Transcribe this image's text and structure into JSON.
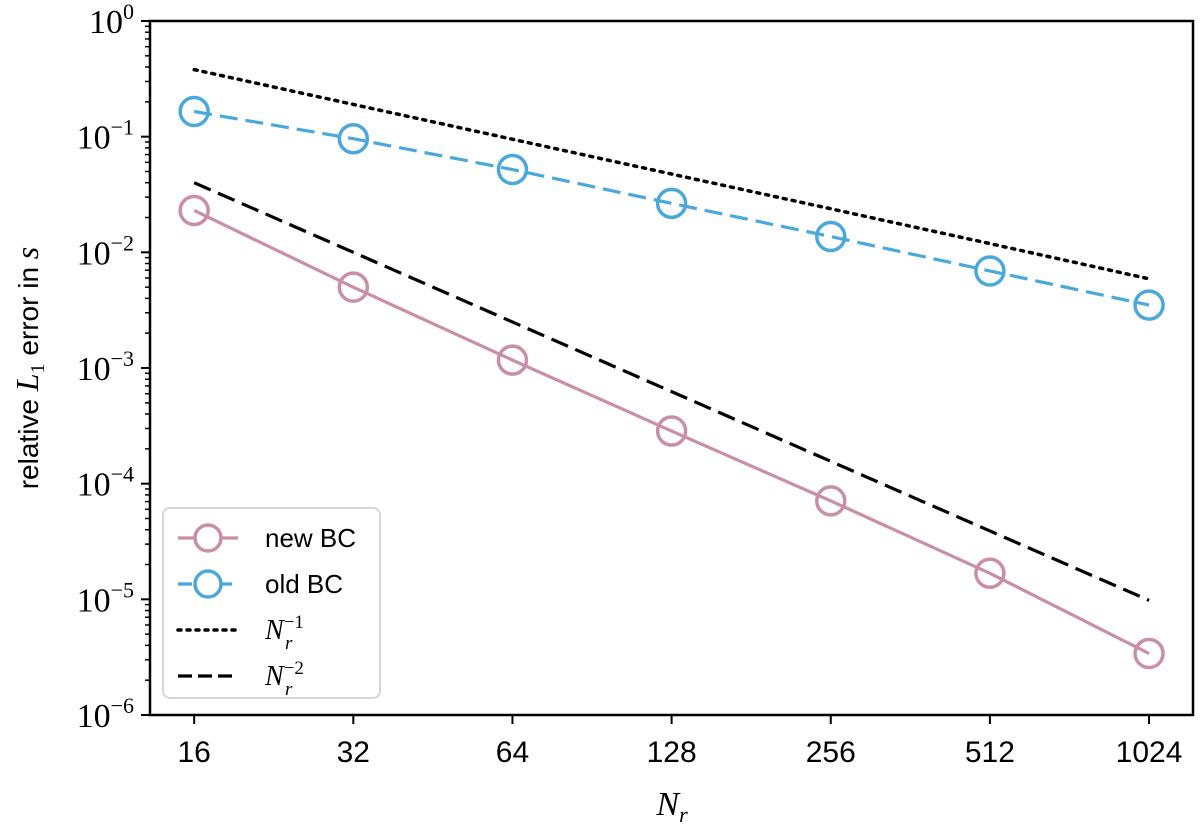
{
  "chart_data": {
    "type": "line",
    "x_scale": "log2",
    "y_scale": "log10",
    "x": [
      16,
      32,
      64,
      128,
      256,
      512,
      1024
    ],
    "x_tick_labels": [
      "16",
      "32",
      "64",
      "128",
      "256",
      "512",
      "1024"
    ],
    "xlim": [
      13.2,
      1240
    ],
    "ylim": [
      1e-06,
      1
    ],
    "y_ticks": [
      {
        "base": "10",
        "exp": "0"
      },
      {
        "base": "10",
        "exp": "−1"
      },
      {
        "base": "10",
        "exp": "−2"
      },
      {
        "base": "10",
        "exp": "−3"
      },
      {
        "base": "10",
        "exp": "−4"
      },
      {
        "base": "10",
        "exp": "−5"
      },
      {
        "base": "10",
        "exp": "−6"
      }
    ],
    "xlabel": {
      "main": "N",
      "sub": "r"
    },
    "ylabel": {
      "prefix": "relative ",
      "var": "L",
      "sub": "1",
      "middle": " error in ",
      "target": "s"
    },
    "legend_position": "lower-left",
    "series": [
      {
        "name": "new BC",
        "color": "#c98fa8",
        "style": "solid",
        "marker": "circle",
        "values": [
          0.023,
          0.005,
          0.00117,
          0.000285,
          7.1e-05,
          1.68e-05,
          3.4e-06
        ]
      },
      {
        "name": "old BC",
        "color": "#4aa8dc",
        "style": "dashed",
        "marker": "circle",
        "values": [
          0.165,
          0.096,
          0.052,
          0.0265,
          0.0137,
          0.0069,
          0.0035
        ]
      },
      {
        "name": {
          "main": "N",
          "sub": "r",
          "sup": "−1"
        },
        "color": "#000000",
        "style": "dotted",
        "marker": "none",
        "values": [
          0.38,
          0.19,
          0.095,
          0.0475,
          0.0238,
          0.0119,
          0.0059
        ]
      },
      {
        "name": {
          "main": "N",
          "sub": "r",
          "sup": "−2"
        },
        "color": "#000000",
        "style": "dashed",
        "marker": "none",
        "values": [
          0.04,
          0.01,
          0.0025,
          0.000625,
          0.000156,
          3.9e-05,
          9.8e-06
        ]
      }
    ]
  }
}
